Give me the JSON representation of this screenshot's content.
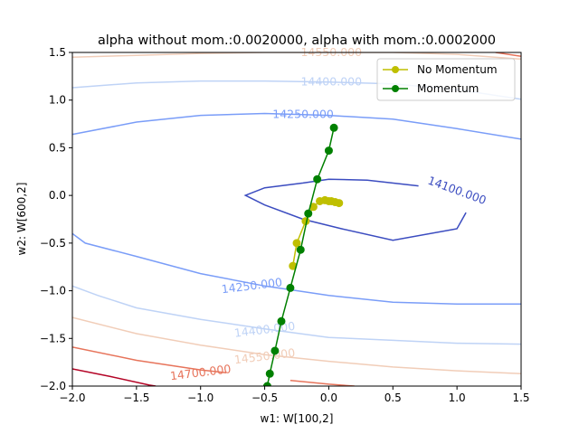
{
  "chart_data": {
    "type": "line",
    "title": "alpha without mom.:0.0020000, alpha with mom.:0.0002000",
    "xlabel": "w1: W[100,2]",
    "ylabel": "w2: W[600,2]",
    "xlim": [
      -2.0,
      1.5
    ],
    "ylim": [
      -2.0,
      1.5
    ],
    "xticks": [
      -2.0,
      -1.5,
      -1.0,
      -0.5,
      0.0,
      0.5,
      1.0,
      1.5
    ],
    "yticks": [
      -2.0,
      -1.5,
      -1.0,
      -0.5,
      0.0,
      0.5,
      1.0,
      1.5
    ],
    "xtick_labels": [
      "−2.0",
      "−1.5",
      "−1.0",
      "−0.5",
      "0.0",
      "0.5",
      "1.0",
      "1.5"
    ],
    "ytick_labels": [
      "−2.0",
      "−1.5",
      "−1.0",
      "−0.5",
      "0.0",
      "0.5",
      "1.0",
      "1.5"
    ],
    "grid": false,
    "legend_position": "top-right",
    "contours": [
      {
        "level": "14100.000",
        "color": "#3b4cc0",
        "lines": [
          [
            [
              0.7,
              0.1
            ],
            [
              0.3,
              0.16
            ],
            [
              0.0,
              0.17
            ],
            [
              -0.2,
              0.13
            ],
            [
              -0.5,
              0.08
            ],
            [
              -0.65,
              0.0
            ],
            [
              -0.5,
              -0.1
            ],
            [
              -0.2,
              -0.25
            ],
            [
              0.1,
              -0.35
            ],
            [
              0.5,
              -0.47
            ],
            [
              1.0,
              -0.35
            ],
            [
              1.07,
              -0.18
            ]
          ]
        ],
        "label": {
          "x": 1.0,
          "y": 0.05,
          "rotation": 20,
          "text": "14100.000"
        }
      },
      {
        "level": "14250.000",
        "color": "#7a9df8",
        "lines": [
          [
            [
              -2.0,
              0.64
            ],
            [
              -1.5,
              0.77
            ],
            [
              -1.0,
              0.84
            ],
            [
              -0.5,
              0.86
            ],
            [
              0.0,
              0.84
            ],
            [
              0.5,
              0.8
            ],
            [
              1.0,
              0.7
            ],
            [
              1.5,
              0.59
            ]
          ],
          [
            [
              -2.0,
              -0.4
            ],
            [
              -1.9,
              -0.5
            ],
            [
              -1.5,
              -0.64
            ],
            [
              -1.0,
              -0.82
            ],
            [
              -0.5,
              -0.95
            ],
            [
              0.0,
              -1.05
            ],
            [
              0.5,
              -1.12
            ],
            [
              1.0,
              -1.14
            ],
            [
              1.5,
              -1.14
            ]
          ]
        ],
        "label": {
          "x": -0.2,
          "y": 0.85,
          "rotation": 0,
          "text": "14250.000"
        },
        "label2": {
          "x": -0.6,
          "y": -0.95,
          "rotation": -7,
          "text": "14250.000"
        }
      },
      {
        "level": "14400.000",
        "color": "#bfd3f6",
        "lines": [
          [
            [
              -2.0,
              1.13
            ],
            [
              -1.5,
              1.18
            ],
            [
              -1.0,
              1.2
            ],
            [
              -0.5,
              1.2
            ],
            [
              0.0,
              1.19
            ],
            [
              0.5,
              1.17
            ],
            [
              1.0,
              1.11
            ],
            [
              1.5,
              1.01
            ]
          ],
          [
            [
              -2.0,
              -0.95
            ],
            [
              -1.8,
              -1.05
            ],
            [
              -1.5,
              -1.18
            ],
            [
              -1.0,
              -1.3
            ],
            [
              -0.5,
              -1.4
            ],
            [
              0.0,
              -1.49
            ],
            [
              0.5,
              -1.52
            ],
            [
              1.0,
              -1.55
            ],
            [
              1.5,
              -1.56
            ]
          ]
        ],
        "label": {
          "x": 0.02,
          "y": 1.19,
          "rotation": 0,
          "text": "14400.000"
        },
        "label2": {
          "x": -0.5,
          "y": -1.41,
          "rotation": -7,
          "text": "14400.000"
        }
      },
      {
        "level": "14550.000",
        "color": "#f1cdb8",
        "lines": [
          [
            [
              -2.0,
              1.45
            ],
            [
              -1.5,
              1.47
            ],
            [
              -1.0,
              1.49
            ],
            [
              -0.5,
              1.5
            ],
            [
              0.0,
              1.5
            ],
            [
              0.5,
              1.5
            ],
            [
              1.0,
              1.48
            ],
            [
              1.5,
              1.43
            ]
          ],
          [
            [
              -2.0,
              -1.28
            ],
            [
              -1.5,
              -1.45
            ],
            [
              -1.0,
              -1.57
            ],
            [
              -0.5,
              -1.67
            ],
            [
              0.0,
              -1.74
            ],
            [
              0.5,
              -1.8
            ],
            [
              1.0,
              -1.84
            ],
            [
              1.5,
              -1.87
            ]
          ]
        ],
        "label": {
          "x": 0.02,
          "y": 1.5,
          "rotation": 0,
          "text": "14550.000"
        },
        "label2": {
          "x": -0.5,
          "y": -1.69,
          "rotation": -7,
          "text": "14550.000"
        }
      },
      {
        "level": "14700.000",
        "color": "#e7745b",
        "lines": [
          [
            [
              -2.0,
              -1.59
            ],
            [
              -1.5,
              -1.73
            ],
            [
              -1.0,
              -1.83
            ],
            [
              -0.8,
              -1.86
            ]
          ],
          [
            [
              -0.3,
              -1.94
            ],
            [
              0.0,
              -1.98
            ],
            [
              0.2,
              -2.0
            ]
          ],
          [
            [
              1.3,
              1.5
            ],
            [
              1.5,
              1.46
            ]
          ]
        ],
        "label": {
          "x": -1.0,
          "y": -1.86,
          "rotation": -7,
          "text": "14700.000"
        }
      },
      {
        "level": "",
        "color": "#b40426",
        "lines": [
          [
            [
              -2.0,
              -1.82
            ],
            [
              -1.7,
              -1.9
            ],
            [
              -1.4,
              -1.99
            ],
            [
              -1.35,
              -2.0
            ]
          ]
        ]
      }
    ],
    "series": [
      {
        "name": "No Momentum",
        "color": "#bfbf00",
        "marker": "o",
        "x": [
          -0.28,
          -0.25,
          -0.18,
          -0.12,
          -0.07,
          -0.03,
          0.0,
          0.02,
          0.05,
          0.08
        ],
        "y": [
          -0.74,
          -0.5,
          -0.27,
          -0.12,
          -0.06,
          -0.05,
          -0.06,
          -0.06,
          -0.07,
          -0.08
        ]
      },
      {
        "name": "Momentum",
        "color": "#008000",
        "marker": "o",
        "x": [
          -0.48,
          -0.46,
          -0.42,
          -0.37,
          -0.3,
          -0.22,
          -0.16,
          -0.09,
          0.0,
          0.04
        ],
        "y": [
          -2.0,
          -1.87,
          -1.63,
          -1.32,
          -0.97,
          -0.57,
          -0.19,
          0.17,
          0.47,
          0.71
        ]
      }
    ]
  }
}
